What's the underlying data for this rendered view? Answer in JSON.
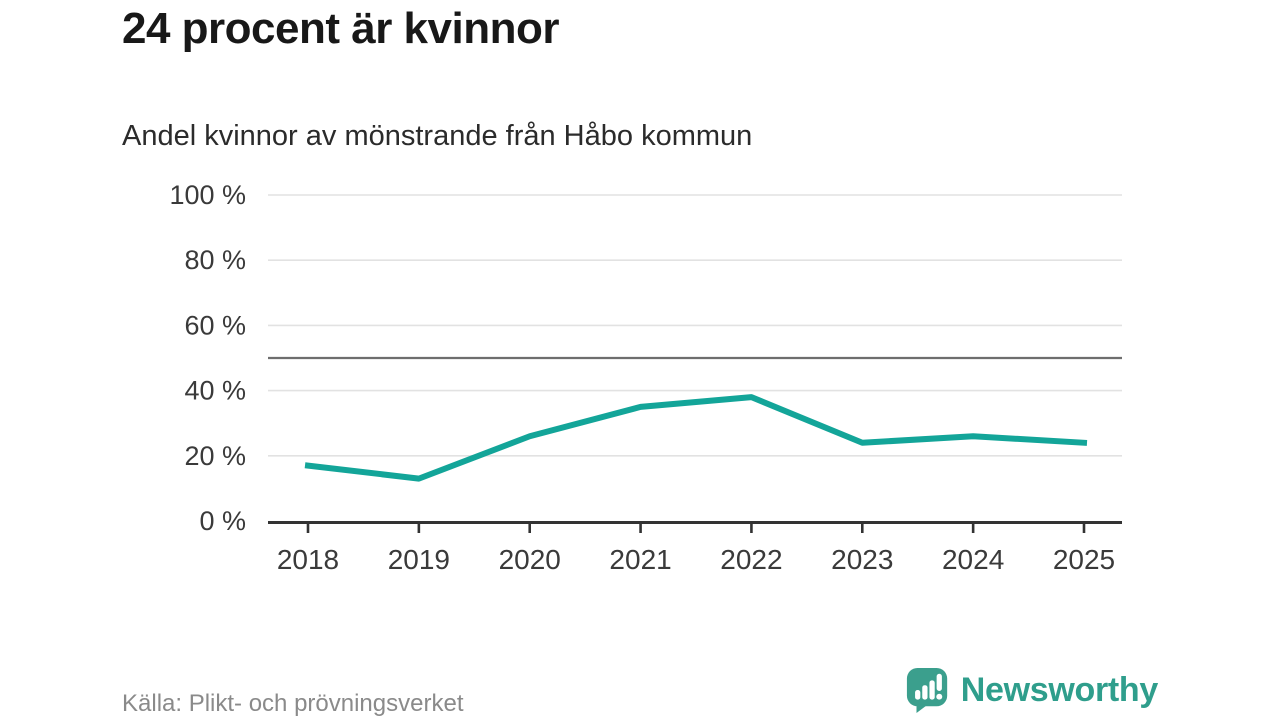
{
  "header": {
    "title": "24 procent är kvinnor",
    "subtitle": "Andel kvinnor av mönstrande från Håbo kommun"
  },
  "chart_data": {
    "type": "line",
    "title": "24 procent är kvinnor",
    "subtitle": "Andel kvinnor av mönstrande från Håbo kommun",
    "x": [
      2018,
      2019,
      2020,
      2021,
      2022,
      2023,
      2024,
      2025
    ],
    "series": [
      {
        "name": "Andel kvinnor av mönstrande",
        "values": [
          17,
          13,
          26,
          35,
          38,
          24,
          26,
          24
        ]
      }
    ],
    "unit": "%",
    "xlabel": "",
    "ylabel": "",
    "ylim": [
      0,
      100
    ],
    "yticks": [
      0,
      20,
      40,
      60,
      80,
      100
    ],
    "ytick_suffix": " %",
    "reference_line": 50,
    "grid": "horizontal",
    "legend": "none"
  },
  "footer": {
    "source": "Källa: Plikt- och prövningsverket",
    "brand": "Newsworthy"
  },
  "colors": {
    "line": "#13a599",
    "grid": "#e2e2e2",
    "reference": "#6e6e6e",
    "axis": "#333333",
    "tick_label": "#3a3a3a",
    "title_text": "#181818",
    "muted_text": "#8a8a8a",
    "brand_teal": "#3b9f8d"
  }
}
